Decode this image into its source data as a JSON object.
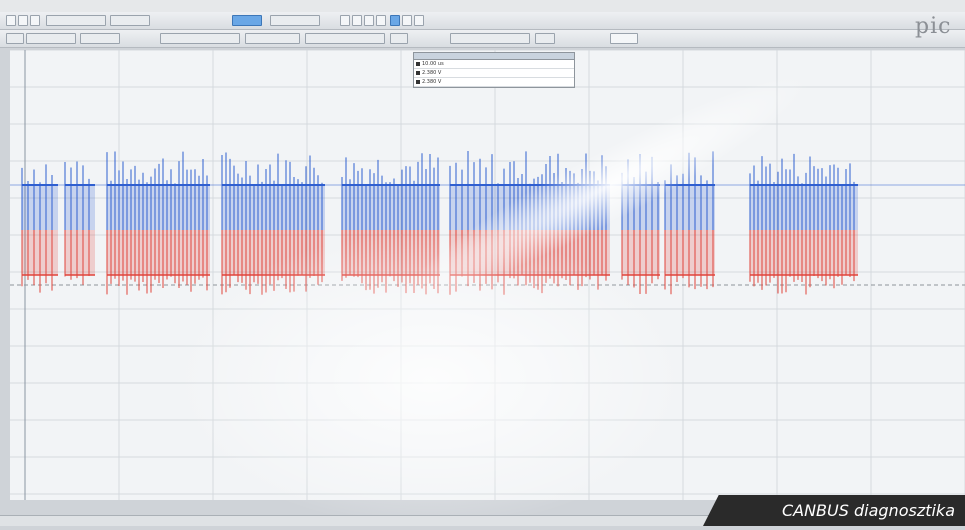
{
  "app": {
    "brand": "pic"
  },
  "measurements": {
    "rows": [
      "10.00 us",
      "2.380 V",
      "2.380 V"
    ]
  },
  "caption": {
    "text": "CANBUS diagnosztika"
  },
  "colors": {
    "channel_a": "#2f5fd0",
    "channel_b": "#e0433a",
    "background": "#f2f4f6"
  },
  "chart_data": {
    "type": "line",
    "title": "",
    "series": [
      {
        "name": "",
        "color": "#2f5fd0"
      },
      {
        "name": "",
        "color": "#e0433a"
      }
    ],
    "grid": true
  }
}
